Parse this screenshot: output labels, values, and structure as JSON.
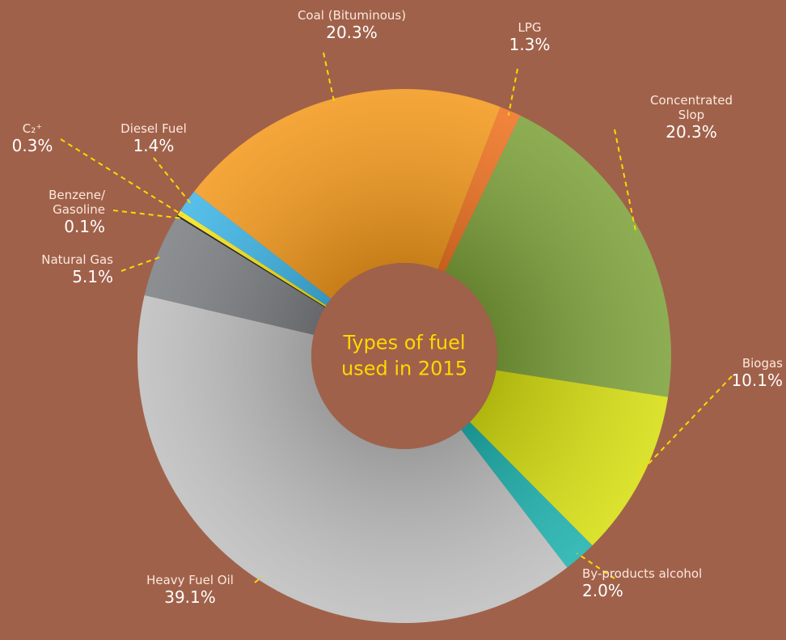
{
  "chart_data": {
    "type": "pie",
    "title": "Types of fuel\nused in 2015",
    "categories": [
      "Coal (Bituminous)",
      "LPG",
      "Concentrated Slop",
      "Biogas",
      "By-products alcohol",
      "Heavy Fuel Oil",
      "Natural Gas",
      "Benzene/\nGasoline",
      "C₂⁺",
      "Diesel Fuel"
    ],
    "values": [
      20.3,
      1.3,
      20.3,
      10.1,
      2.0,
      39.1,
      5.1,
      0.1,
      0.3,
      1.4
    ],
    "value_labels": [
      "20.3%",
      "1.3%",
      "20.3%",
      "10.1%",
      "2.0%",
      "39.1%",
      "5.1%",
      "0.1%",
      "0.3%",
      "1.4%"
    ],
    "colors": [
      "#f39a1f",
      "#ef7423",
      "#7ea23c",
      "#d6de12",
      "#1fb2ae",
      "#bfbfbf",
      "#7d8083",
      "#111111",
      "#f6e41a",
      "#40b6e6"
    ]
  }
}
